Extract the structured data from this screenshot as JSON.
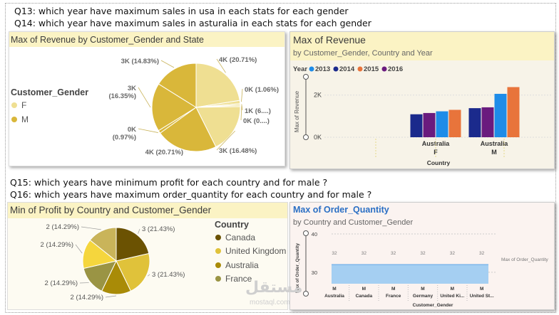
{
  "questions": {
    "q13": "Q13: which year have maximum sales in usa in each stats for each gender",
    "q14": "Q14: which year have maximum sales in asturalia in each stats for each gender",
    "q15": "Q15: which years have minimum profit for each country and for male ?",
    "q16": "Q16: which years have maximum order_quantity for each country and for male ?"
  },
  "watermark": {
    "text": "مستقل",
    "sub": "mostaql.com"
  },
  "colors": {
    "pie_gold": "#d9b73a",
    "pie_light": "#efdf92",
    "blue2013": "#1e8ce8",
    "navy2014": "#1b2a8c",
    "orange2015": "#e8743b",
    "purple2016": "#6a1b7e",
    "order_bar": "#a5cff2"
  },
  "chart_data": [
    {
      "type": "pie",
      "title": "Max of Revenue by Customer_Gender and State",
      "legend_title": "Customer_Gender",
      "legend": [
        "F",
        "M"
      ],
      "legend_placement": "left",
      "slices": [
        {
          "label": "4K (20.71%)",
          "value": 20.71,
          "gender": "F"
        },
        {
          "label": "0K (1.06%)",
          "value": 1.06,
          "gender": "F"
        },
        {
          "label": "1K (6....)",
          "value": 0.5,
          "gender": "F"
        },
        {
          "label": "0K (0....)",
          "value": 0.5,
          "gender": "F"
        },
        {
          "label": "3K (16.48%)",
          "value": 16.48,
          "gender": "F"
        },
        {
          "label": "4K (20.71%)",
          "value": 20.71,
          "gender": "M"
        },
        {
          "label": "0K (0.97%)",
          "value": 0.97,
          "gender": "M"
        },
        {
          "label": "3K (16.35%)",
          "value": 16.35,
          "gender": "M"
        },
        {
          "label": "3K (14.83%)",
          "value": 14.83,
          "gender": "M"
        }
      ]
    },
    {
      "type": "bar",
      "title": "Max of Revenue",
      "subtitle": "by Customer_Gender, Country and Year",
      "legend_title": "Year",
      "legend_placement": "top-left",
      "ylabel": "Max of Revenue",
      "xlabel": "Country",
      "ylim": [
        0,
        2700
      ],
      "yticks": [
        {
          "label": "0K",
          "value": 0
        },
        {
          "label": "2K",
          "value": 2000
        }
      ],
      "groups": [
        {
          "country": "Australia",
          "gender": "F"
        },
        {
          "country": "Australia",
          "gender": "M"
        }
      ],
      "series": [
        {
          "name": "2013",
          "values": [
            1180,
            1400
          ]
        },
        {
          "name": "2014",
          "values": [
            1090,
            1090
          ]
        },
        {
          "name": "2015",
          "values": [
            1260,
            1440
          ]
        },
        {
          "name": "2016",
          "values": [
            1330,
            2100
          ]
        }
      ],
      "series_order": [
        "2014",
        "2016",
        "2013",
        "2015"
      ],
      "order_values": [
        [
          1090,
          1150,
          1230,
          1300
        ],
        [
          1380,
          1420,
          2060,
          2380
        ]
      ]
    },
    {
      "type": "pie",
      "title": "Min of Profit by Country and Customer_Gender",
      "legend_title": "Country",
      "legend": [
        "Canada",
        "United Kingdom",
        "Australia",
        "France"
      ],
      "legend_placement": "right",
      "slices": [
        {
          "label": "3 (21.43%)",
          "value": 21.43
        },
        {
          "label": "3 (21.43%)",
          "value": 21.43
        },
        {
          "label": "2 (14.29%)",
          "value": 14.29
        },
        {
          "label": "2 (14.29%)",
          "value": 14.29
        },
        {
          "label": "2 (14.29%)",
          "value": 14.29
        },
        {
          "label": "2 (14.29%)",
          "value": 14.29
        }
      ]
    },
    {
      "type": "bar",
      "title": "Max of Order_Quantity",
      "subtitle": "by Country and Customer_Gender",
      "ylabel": "Max of Order_Quantity",
      "xlabel": "Customer_Gender",
      "ylim": [
        27,
        40
      ],
      "yticks": [
        {
          "label": "40",
          "value": 40
        },
        {
          "label": "30",
          "value": 30
        }
      ],
      "series_label": "Max of Order_Quantity",
      "categories": [
        {
          "gender": "M",
          "country": "Australia",
          "value": 32
        },
        {
          "gender": "M",
          "country": "Canada",
          "value": 32
        },
        {
          "gender": "M",
          "country": "France",
          "value": 32
        },
        {
          "gender": "M",
          "country": "Germany",
          "value": 32
        },
        {
          "gender": "M",
          "country": "United Ki...",
          "value": 32
        },
        {
          "gender": "M",
          "country": "United St...",
          "value": 32
        }
      ]
    }
  ]
}
